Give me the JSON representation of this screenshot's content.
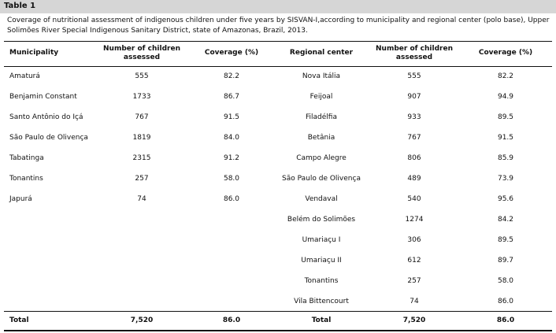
{
  "table_label": "Table 1",
  "caption": "Coverage of nutritional assessment of indigenous children under five years by SISVAN-I,according to municipality and regional center (polo base), Upper Solimões River Special Indigenous Sanitary District, state of Amazonas, Brazil, 2013.",
  "headers": {
    "municipality": "Municipality",
    "number_assessed_line1": "Number of children",
    "number_assessed_line2": "assessed",
    "coverage": "Coverage (%)",
    "regional_center": "Regional center",
    "number_assessed2_line1": "Number of children",
    "number_assessed2_line2": "assessed",
    "coverage2": "Coverage (%)"
  },
  "municipalities": [
    {
      "name": "Amaturá",
      "number": "555",
      "coverage": "82.2"
    },
    {
      "name": "Benjamin Constant",
      "number": "1733",
      "coverage": "86.7"
    },
    {
      "name": "Santo Antônio do Içá",
      "number": "767",
      "coverage": "91.5"
    },
    {
      "name": "São Paulo de Olivença",
      "number": "1819",
      "coverage": "84.0"
    },
    {
      "name": "Tabatinga",
      "number": "2315",
      "coverage": "91.2"
    },
    {
      "name": "Tonantins",
      "number": "257",
      "coverage": "58.0"
    },
    {
      "name": "Japurá",
      "number": "74",
      "coverage": "86.0"
    }
  ],
  "regional_centers": [
    {
      "name": "Nova Itália",
      "number": "555",
      "coverage": "82.2"
    },
    {
      "name": "Feijoal",
      "number": "907",
      "coverage": "94.9"
    },
    {
      "name": "Filadélfia",
      "number": "933",
      "coverage": "89.5"
    },
    {
      "name": "Betânia",
      "number": "767",
      "coverage": "91.5"
    },
    {
      "name": "Campo Alegre",
      "number": "806",
      "coverage": "85.9"
    },
    {
      "name": "São Paulo de Olivença",
      "number": "489",
      "coverage": "73.9"
    },
    {
      "name": "Vendaval",
      "number": "540",
      "coverage": "95.6"
    },
    {
      "name": "Belém do Solimões",
      "number": "1274",
      "coverage": "84.2"
    },
    {
      "name": "Umariaçu I",
      "number": "306",
      "coverage": "89.5"
    },
    {
      "name": "Umariaçu II",
      "number": "612",
      "coverage": "89.7"
    },
    {
      "name": "Tonantins",
      "number": "257",
      "coverage": "58.0"
    },
    {
      "name": "Vila Bittencourt",
      "number": "74",
      "coverage": "86.0"
    }
  ],
  "totals": {
    "label1": "Total",
    "number1": "7,520",
    "coverage1": "86.0",
    "label2": "Total",
    "number2": "7,520",
    "coverage2": "86.0"
  }
}
